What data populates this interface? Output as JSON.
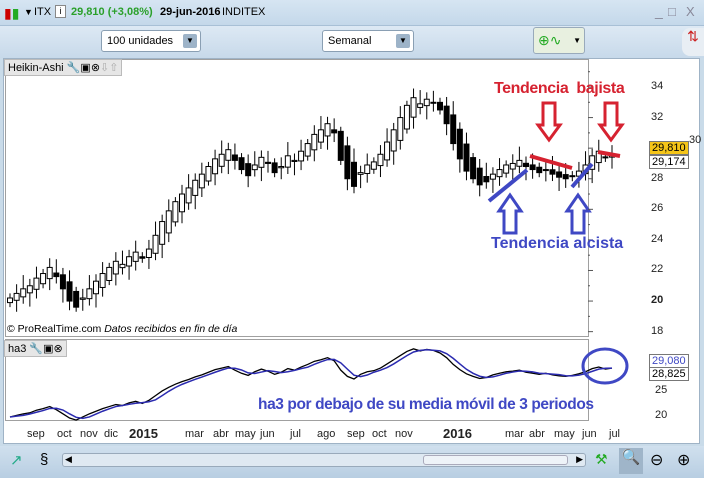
{
  "window": {
    "symbol": "ITX",
    "price_change": "29,810 (+3,08%)",
    "date": "29-jun-2016",
    "name": "INDITEX",
    "green": "#2aa02a"
  },
  "toolbar": {
    "quantity": "100 unidades",
    "period": "Semanal"
  },
  "main_panel": {
    "title": "Heikin-Ashi",
    "watermark": "© ProRealTime.com",
    "data_note": "Datos recibidos en fin de día",
    "price_ticks": [
      "34",
      "32",
      "30",
      "28",
      "26",
      "24",
      "22",
      "20",
      "18"
    ],
    "last_price": "29,810",
    "second_price": "29,174"
  },
  "indicator_panel": {
    "title": "ha3",
    "ticks": [
      "25",
      "20"
    ],
    "value1": "29,080",
    "value2": "28,825"
  },
  "x_axis": [
    "sep",
    "oct",
    "nov",
    "dic",
    "2015",
    "mar",
    "abr",
    "may",
    "jun",
    "jul",
    "ago",
    "sep",
    "oct",
    "nov",
    "2016",
    "mar",
    "abr",
    "may",
    "jun",
    "jul"
  ],
  "annotations": {
    "bearish": "Tendencia  bajista",
    "bullish": "Tendencia alcista",
    "ha3_note": "ha3 por debajo de su media móvil de 3 periodos",
    "red": "#d62230",
    "blue": "#3f48c4"
  },
  "chart_data": {
    "type": "candlestick",
    "series": [
      {
        "closes": [
          20.2,
          20.5,
          20.8,
          21.0,
          21.5,
          21.8,
          22.2,
          21.6,
          20.8,
          20.0,
          19.6,
          20.2,
          20.8,
          21.3,
          21.8,
          22.2,
          22.6,
          22.4,
          22.9,
          23.2,
          22.8,
          23.4,
          24.3,
          25.2,
          25.9,
          26.5,
          27.0,
          27.4,
          27.9,
          28.3,
          28.8,
          29.3,
          29.6,
          29.9,
          29.2,
          28.6,
          28.2,
          28.9,
          29.4,
          29.0,
          28.4,
          28.8,
          29.5,
          29.2,
          29.8,
          30.3,
          30.9,
          31.2,
          31.6,
          31.0,
          29.2,
          28.0,
          27.5,
          28.4,
          28.9,
          29.1,
          29.6,
          30.4,
          31.2,
          32.0,
          32.8,
          33.3,
          32.9,
          33.2,
          33.0,
          32.5,
          31.6,
          30.3,
          29.3,
          28.5,
          28.0,
          27.6,
          27.8,
          28.3,
          28.6,
          28.9,
          29.0,
          29.2,
          28.8,
          28.6,
          28.4,
          28.6,
          28.3,
          28.1,
          28.0,
          28.2,
          28.5,
          28.9,
          29.5,
          29.8,
          29.4,
          29.6
        ]
      }
    ],
    "ylim": [
      17,
      35.5
    ]
  }
}
